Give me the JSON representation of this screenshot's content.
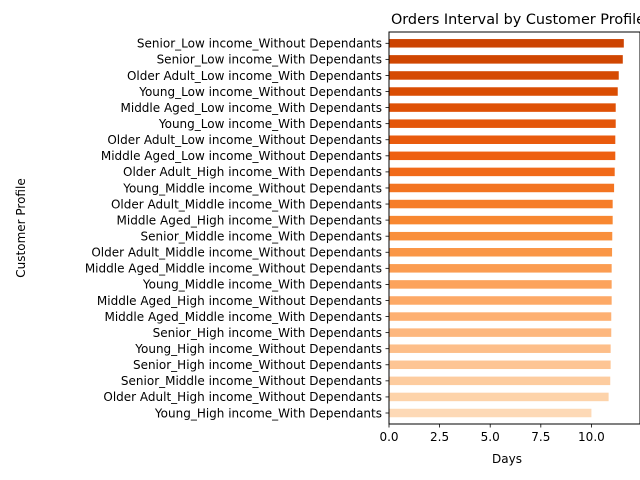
{
  "chart_data": {
    "type": "bar",
    "orientation": "horizontal",
    "title": "Orders Interval by Customer Profile",
    "xlabel": "Days",
    "ylabel": "Customer Profile",
    "xlim": [
      0,
      12.4
    ],
    "xticks": [
      "0.0",
      "2.5",
      "5.0",
      "7.5",
      "10.0"
    ],
    "xtick_values": [
      0,
      2.5,
      5,
      7.5,
      10
    ],
    "grid": false,
    "legend": "none",
    "colormap": "oranges, lightest at bottom bar, darkest at top bar",
    "categories": [
      "Senior_Low income_Without Dependants",
      "Senior_Low income_With Dependants",
      "Older Adult_Low income_With Dependants",
      "Young_Low income_Without Dependants",
      "Middle Aged_Low income_With Dependants",
      "Young_Low income_With Dependants",
      "Older Adult_Low income_Without Dependants",
      "Middle Aged_Low income_Without Dependants",
      "Older Adult_High income_With Dependants",
      "Young_Middle income_Without Dependants",
      "Older Adult_Middle income_With Dependants",
      "Middle Aged_High income_With Dependants",
      "Senior_Middle income_With Dependants",
      "Older Adult_Middle income_Without Dependants",
      "Middle Aged_Middle income_Without Dependants",
      "Young_Middle income_With Dependants",
      "Middle Aged_High income_Without Dependants",
      "Middle Aged_Middle income_With Dependants",
      "Senior_High income_With Dependants",
      "Young_High income_Without Dependants",
      "Senior_High income_Without Dependants",
      "Senior_Middle income_Without Dependants",
      "Older Adult_High income_Without Dependants",
      "Young_High income_With Dependants"
    ],
    "values": [
      11.6,
      11.55,
      11.35,
      11.3,
      11.2,
      11.2,
      11.18,
      11.18,
      11.15,
      11.12,
      11.05,
      11.05,
      11.03,
      11.02,
      11.0,
      11.0,
      11.0,
      10.98,
      10.98,
      10.95,
      10.95,
      10.93,
      10.85,
      10.0
    ],
    "colors": [
      "#cc4302",
      "#d04601",
      "#d54a02",
      "#da4d02",
      "#df5106",
      "#e4560a",
      "#e95a0d",
      "#ee6011",
      "#f16a19",
      "#f37421",
      "#f67d29",
      "#f88730",
      "#f98f3b",
      "#fa9646",
      "#fb9c51",
      "#fca35c",
      "#fda966",
      "#fdb072",
      "#fdb77e",
      "#fdbe89",
      "#fdc594",
      "#fdcc9f",
      "#fdd3aa",
      "#fdd9b6"
    ]
  }
}
